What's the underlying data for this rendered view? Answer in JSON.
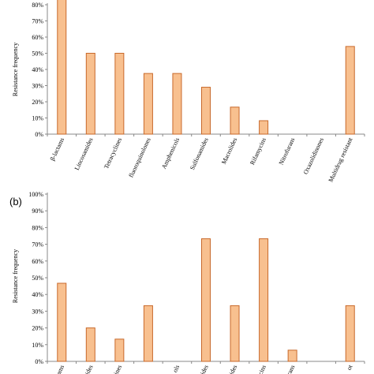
{
  "chart_data": [
    {
      "type": "bar",
      "panel_label": "",
      "ylabel": "Resistance frequency",
      "ylim": [
        0,
        80
      ],
      "y_ticks": [
        "0%",
        "10%",
        "20%",
        "30%",
        "40%",
        "50%",
        "60%",
        "70%",
        "80%"
      ],
      "categories": [
        "β-lactams",
        "Lincosamides",
        "Tetracyclines",
        "fluoroquinolones",
        "Amphenicols",
        "Sulfonamides",
        "Macrolides",
        "Rifamycins",
        "Nitrofurans",
        "Oxazolidinones",
        "Multidrug resistant"
      ],
      "values": [
        85,
        50,
        50,
        37.5,
        37.5,
        29,
        16.7,
        8.3,
        0,
        0,
        54.2
      ],
      "grid": false
    },
    {
      "type": "bar",
      "panel_label": "(b)",
      "ylabel": "Resistance frequency",
      "ylim": [
        0,
        100
      ],
      "y_ticks": [
        "0%",
        "10%",
        "20%",
        "30%",
        "40%",
        "50%",
        "60%",
        "70%",
        "80%",
        "90%",
        "100%"
      ],
      "categories": [
        "ams",
        "ides",
        "ines",
        "",
        "ols",
        "ides",
        "lides",
        "cins",
        "rans",
        "",
        "ot"
      ],
      "values": [
        46.7,
        20,
        13.3,
        33.3,
        0,
        73.3,
        33.3,
        73.3,
        6.7,
        0,
        33.3
      ],
      "grid": false
    }
  ]
}
